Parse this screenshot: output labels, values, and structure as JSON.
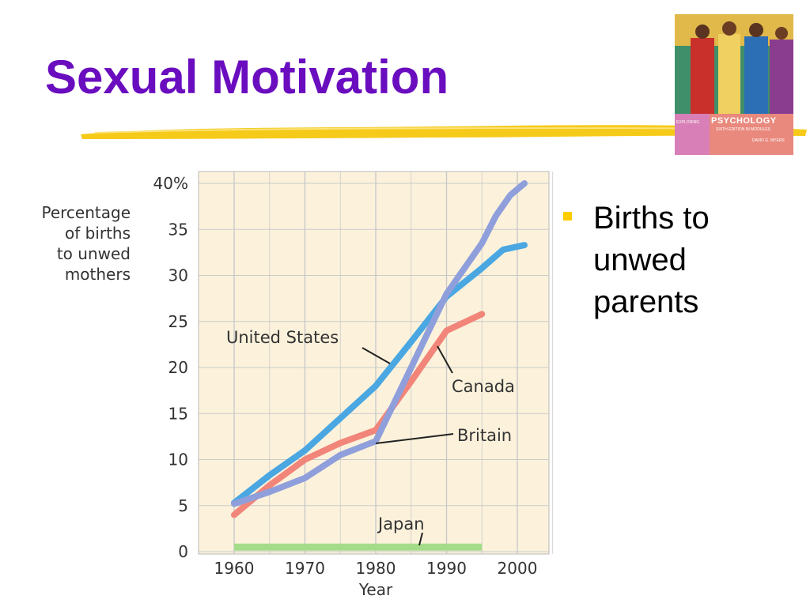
{
  "slide": {
    "title": "Sexual Motivation",
    "bullet": "Births to unwed parents"
  },
  "book_cover": {
    "kicker": "EXPLORING",
    "name": "PSYCHOLOGY",
    "edition": "SIXTH EDITION IN MODULES",
    "author": "DAVID G. MYERS"
  },
  "colors": {
    "title": "#6a0dbf",
    "underline": "#f5c400",
    "bullet_marker": "#ffcc00",
    "plot_background": "#fcf2dc",
    "grid": "#c9c9c9",
    "united_states": "#4aa7e2",
    "britain": "#8f9fdb",
    "canada": "#f2857a",
    "japan": "#a5dc8a"
  },
  "chart_data": {
    "type": "line",
    "ylabel": "Percentage of births to unwed mothers",
    "ylabel_lines": [
      "Percentage",
      "of births",
      "to unwed",
      "mothers"
    ],
    "xlabel": "Year",
    "x_ticks": [
      "1960",
      "1970",
      "1980",
      "1990",
      "2000"
    ],
    "y_ticks": [
      "0",
      "5",
      "10",
      "15",
      "20",
      "25",
      "30",
      "35",
      "40%"
    ],
    "xlim": [
      1960,
      2005
    ],
    "ylim": [
      0,
      40
    ],
    "grid": true,
    "series": [
      {
        "name": "United States",
        "color": "#4aa7e2",
        "x": [
          1960,
          1965,
          1970,
          1975,
          1980,
          1985,
          1990,
          1995,
          1998,
          2001
        ],
        "y": [
          5.3,
          8.3,
          11.0,
          14.5,
          18.0,
          22.8,
          27.7,
          30.8,
          32.8,
          33.3
        ]
      },
      {
        "name": "Britain",
        "color": "#8f9fdb",
        "x": [
          1960,
          1965,
          1970,
          1975,
          1980,
          1985,
          1990,
          1995,
          1997,
          1999,
          2001
        ],
        "y": [
          5.2,
          6.5,
          8.0,
          10.5,
          12.0,
          20.0,
          28.0,
          33.5,
          36.5,
          38.7,
          40.0
        ]
      },
      {
        "name": "Canada",
        "color": "#f2857a",
        "x": [
          1960,
          1965,
          1970,
          1975,
          1980,
          1985,
          1990,
          1995
        ],
        "y": [
          4.0,
          7.2,
          10.0,
          11.8,
          13.2,
          18.5,
          24.0,
          25.8
        ]
      },
      {
        "name": "Japan",
        "color": "#a5dc8a",
        "x": [
          1960,
          1995
        ],
        "y": [
          0.5,
          0.5
        ]
      }
    ],
    "annotations": [
      {
        "label": "United States",
        "series": "United States"
      },
      {
        "label": "Canada",
        "series": "Canada"
      },
      {
        "label": "Britain",
        "series": "Britain"
      },
      {
        "label": "Japan",
        "series": "Japan"
      }
    ]
  }
}
